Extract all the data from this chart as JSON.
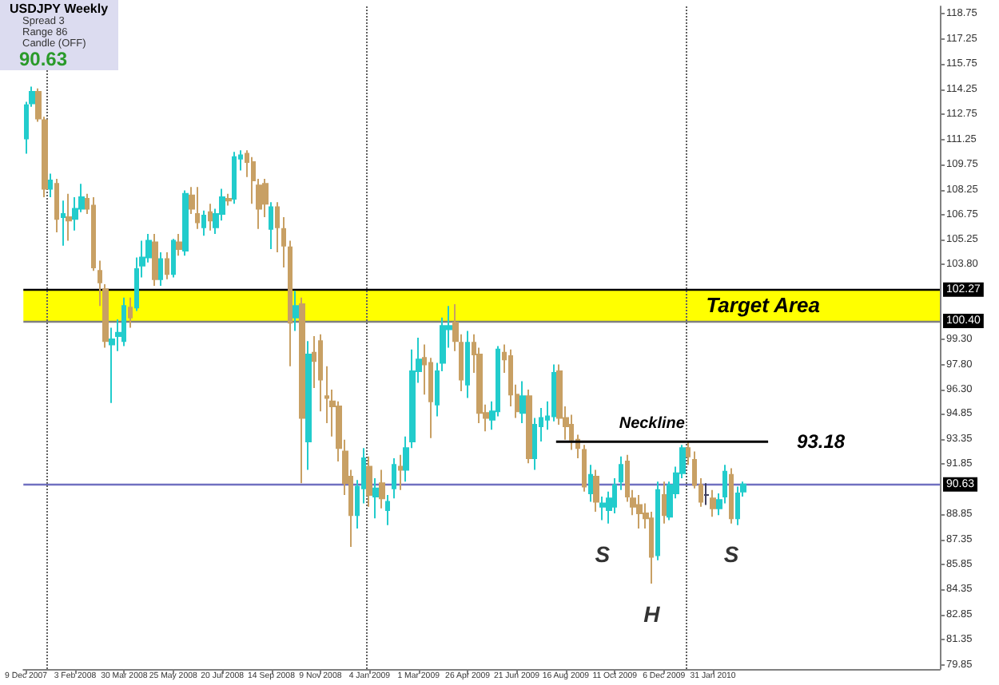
{
  "chart_data": {
    "type": "candlestick",
    "title": "USDJPY   Weekly",
    "annotations": [
      "Spread  3",
      "Range  86",
      "Candle  (OFF)",
      "90.63",
      {
        "text": "S",
        "x": "2009-09-27",
        "y": 88.3
      },
      {
        "text": "H",
        "x": "2009-11-22",
        "y": 84.7
      },
      {
        "text": "S",
        "x": "2010-02-21",
        "y": 88.3
      }
    ],
    "x": [
      "2007-12-09",
      "2007-12-16",
      "2007-12-23",
      "2007-12-30",
      "2008-01-06",
      "2008-01-13",
      "2008-01-20",
      "2008-01-27",
      "2008-02-03",
      "2008-02-10",
      "2008-02-17",
      "2008-02-24",
      "2008-03-02",
      "2008-03-09",
      "2008-03-16",
      "2008-03-23",
      "2008-03-30",
      "2008-04-06",
      "2008-04-13",
      "2008-04-20",
      "2008-04-27",
      "2008-05-04",
      "2008-05-11",
      "2008-05-18",
      "2008-05-25",
      "2008-06-01",
      "2008-06-08",
      "2008-06-15",
      "2008-06-22",
      "2008-06-29",
      "2008-07-06",
      "2008-07-13",
      "2008-07-20",
      "2008-07-27",
      "2008-08-03",
      "2008-08-10",
      "2008-08-17",
      "2008-08-24",
      "2008-08-31",
      "2008-09-07",
      "2008-09-14",
      "2008-09-21",
      "2008-09-28",
      "2008-10-05",
      "2008-10-12",
      "2008-10-19",
      "2008-10-26",
      "2008-11-02",
      "2008-11-09",
      "2008-11-16",
      "2008-11-23",
      "2008-11-30",
      "2008-12-07",
      "2008-12-14",
      "2008-12-21",
      "2008-12-28",
      "2009-01-04",
      "2009-01-11",
      "2009-01-18",
      "2009-01-25",
      "2009-02-01",
      "2009-02-08",
      "2009-02-15",
      "2009-02-22",
      "2009-03-01",
      "2009-03-08",
      "2009-03-15",
      "2009-03-22",
      "2009-03-29",
      "2009-04-05",
      "2009-04-12",
      "2009-04-19",
      "2009-04-26",
      "2009-05-03",
      "2009-05-10",
      "2009-05-17",
      "2009-05-24",
      "2009-05-31",
      "2009-06-07",
      "2009-06-14",
      "2009-06-21",
      "2009-06-28",
      "2009-07-05",
      "2009-07-12",
      "2009-07-19",
      "2009-07-26",
      "2009-08-02",
      "2009-08-09",
      "2009-08-16",
      "2009-08-23",
      "2009-08-30",
      "2009-09-06",
      "2009-09-13",
      "2009-09-20",
      "2009-09-27",
      "2009-10-04",
      "2009-10-11",
      "2009-10-18",
      "2009-10-25",
      "2009-11-01",
      "2009-11-08",
      "2009-11-15",
      "2009-11-22",
      "2009-11-29",
      "2009-12-06",
      "2009-12-13",
      "2009-12-20",
      "2009-12-27",
      "2010-01-03",
      "2010-01-10",
      "2010-01-17",
      "2010-01-24",
      "2010-01-31",
      "2010-02-07",
      "2010-02-14",
      "2010-02-21",
      "2010-02-28",
      "2010-03-07"
    ],
    "ohlc": [
      [
        111.3,
        113.5,
        110.4,
        113.3
      ],
      [
        113.4,
        114.4,
        113.2,
        114.1
      ],
      [
        114.1,
        114.3,
        112.3,
        112.5
      ],
      [
        112.4,
        112.6,
        107.8,
        108.3
      ],
      [
        108.3,
        109.2,
        107.8,
        108.8
      ],
      [
        108.6,
        108.9,
        105.7,
        106.5
      ],
      [
        106.6,
        107.6,
        104.9,
        106.8
      ],
      [
        106.6,
        108.0,
        105.2,
        106.4
      ],
      [
        106.5,
        107.8,
        105.8,
        107.1
      ],
      [
        107.1,
        108.6,
        106.9,
        107.8
      ],
      [
        107.7,
        108.0,
        106.8,
        107.1
      ],
      [
        107.3,
        107.8,
        103.4,
        103.6
      ],
      [
        103.4,
        104.0,
        101.3,
        102.7
      ],
      [
        102.3,
        102.6,
        98.8,
        99.2
      ],
      [
        99.0,
        100.0,
        95.5,
        99.3
      ],
      [
        99.5,
        100.5,
        98.6,
        99.7
      ],
      [
        99.2,
        101.8,
        98.9,
        101.3
      ],
      [
        101.2,
        101.8,
        100.0,
        100.6
      ],
      [
        101.2,
        104.2,
        101.0,
        103.5
      ],
      [
        103.7,
        105.2,
        103.0,
        104.2
      ],
      [
        104.2,
        105.6,
        103.9,
        105.2
      ],
      [
        105.1,
        105.6,
        102.5,
        102.9
      ],
      [
        102.9,
        104.5,
        102.5,
        104.1
      ],
      [
        104.1,
        104.5,
        102.9,
        103.2
      ],
      [
        103.2,
        105.3,
        103.0,
        105.2
      ],
      [
        105.1,
        105.6,
        104.3,
        104.7
      ],
      [
        104.6,
        108.2,
        104.3,
        108.0
      ],
      [
        107.9,
        108.4,
        106.8,
        107.1
      ],
      [
        106.8,
        108.4,
        105.9,
        106.3
      ],
      [
        106.0,
        107.0,
        105.5,
        106.7
      ],
      [
        106.9,
        107.4,
        105.8,
        106.4
      ],
      [
        106.0,
        107.1,
        105.6,
        106.8
      ],
      [
        106.8,
        108.3,
        106.4,
        107.8
      ],
      [
        107.7,
        108.0,
        107.3,
        107.6
      ],
      [
        107.7,
        110.5,
        107.4,
        110.2
      ],
      [
        110.1,
        110.6,
        109.4,
        110.3
      ],
      [
        110.4,
        110.6,
        109.0,
        109.9
      ],
      [
        109.9,
        110.2,
        107.4,
        108.8
      ],
      [
        108.5,
        108.9,
        105.9,
        107.1
      ],
      [
        108.6,
        108.9,
        106.6,
        107.4
      ],
      [
        105.9,
        107.5,
        104.7,
        107.2
      ],
      [
        107.2,
        107.5,
        104.5,
        106.0
      ],
      [
        105.9,
        106.6,
        103.6,
        104.9
      ],
      [
        104.8,
        105.2,
        97.7,
        100.3
      ],
      [
        100.6,
        102.2,
        99.8,
        101.3
      ],
      [
        101.4,
        101.8,
        90.7,
        94.6
      ],
      [
        93.2,
        99.2,
        91.5,
        98.4
      ],
      [
        98.5,
        99.5,
        96.4,
        98.0
      ],
      [
        99.2,
        99.6,
        95.0,
        96.9
      ],
      [
        95.9,
        97.7,
        94.3,
        95.8
      ],
      [
        95.6,
        96.3,
        93.5,
        95.3
      ],
      [
        95.3,
        95.6,
        92.0,
        92.8
      ],
      [
        92.6,
        93.3,
        90.0,
        90.7
      ],
      [
        91.1,
        91.5,
        86.9,
        88.8
      ],
      [
        88.8,
        90.9,
        88.0,
        90.5
      ],
      [
        90.4,
        92.8,
        89.5,
        92.2
      ],
      [
        91.7,
        92.3,
        89.3,
        90.0
      ],
      [
        89.9,
        91.0,
        88.6,
        90.4
      ],
      [
        90.7,
        91.5,
        89.2,
        89.8
      ],
      [
        89.1,
        90.0,
        88.2,
        89.6
      ],
      [
        90.4,
        92.2,
        89.8,
        91.8
      ],
      [
        91.7,
        92.4,
        90.3,
        91.5
      ],
      [
        91.5,
        93.5,
        90.8,
        92.8
      ],
      [
        93.2,
        98.7,
        92.8,
        97.4
      ],
      [
        97.4,
        99.4,
        96.7,
        98.1
      ],
      [
        98.2,
        99.0,
        96.0,
        97.8
      ],
      [
        97.9,
        98.2,
        93.4,
        95.6
      ],
      [
        95.4,
        97.9,
        94.7,
        97.4
      ],
      [
        97.9,
        100.6,
        97.4,
        100.1
      ],
      [
        99.9,
        101.3,
        98.8,
        100.1
      ],
      [
        100.3,
        101.4,
        98.6,
        99.2
      ],
      [
        99.1,
        99.6,
        96.2,
        96.9
      ],
      [
        96.6,
        99.8,
        95.8,
        99.1
      ],
      [
        99.1,
        99.6,
        97.3,
        98.4
      ],
      [
        98.4,
        98.8,
        94.3,
        94.9
      ],
      [
        94.9,
        95.4,
        93.8,
        94.6
      ],
      [
        94.5,
        95.6,
        93.9,
        95.0
      ],
      [
        95.0,
        98.9,
        94.7,
        98.7
      ],
      [
        98.5,
        99.0,
        97.3,
        98.1
      ],
      [
        98.3,
        98.7,
        95.3,
        96.0
      ],
      [
        96.0,
        96.6,
        94.6,
        95.0
      ],
      [
        94.9,
        96.8,
        94.3,
        95.9
      ],
      [
        95.9,
        96.3,
        91.9,
        92.2
      ],
      [
        92.2,
        94.6,
        91.5,
        94.2
      ],
      [
        94.1,
        95.2,
        93.2,
        94.6
      ],
      [
        94.5,
        95.6,
        93.9,
        94.7
      ],
      [
        94.7,
        97.8,
        94.4,
        97.3
      ],
      [
        97.4,
        97.8,
        94.2,
        94.6
      ],
      [
        94.6,
        95.3,
        93.3,
        94.1
      ],
      [
        94.2,
        94.8,
        92.7,
        93.3
      ],
      [
        93.3,
        93.6,
        92.2,
        92.8
      ],
      [
        92.7,
        93.0,
        90.2,
        90.5
      ],
      [
        90.1,
        91.8,
        89.6,
        91.2
      ],
      [
        91.1,
        91.5,
        89.0,
        89.6
      ],
      [
        89.3,
        89.9,
        88.5,
        89.5
      ],
      [
        89.1,
        90.2,
        88.3,
        89.8
      ],
      [
        89.3,
        91.0,
        88.9,
        90.6
      ],
      [
        90.8,
        92.3,
        90.3,
        91.8
      ],
      [
        92.0,
        92.4,
        89.6,
        89.9
      ],
      [
        89.8,
        90.3,
        88.8,
        89.3
      ],
      [
        89.4,
        90.0,
        88.0,
        88.9
      ],
      [
        88.9,
        89.5,
        88.0,
        88.6
      ],
      [
        88.6,
        89.0,
        84.7,
        86.3
      ],
      [
        86.4,
        90.8,
        86.1,
        90.3
      ],
      [
        90.0,
        90.8,
        88.3,
        88.8
      ],
      [
        88.7,
        90.8,
        88.5,
        90.6
      ],
      [
        90.1,
        91.7,
        89.8,
        91.3
      ],
      [
        91.3,
        93.0,
        91.0,
        92.8
      ],
      [
        92.8,
        93.2,
        91.8,
        92.3
      ],
      [
        92.1,
        92.6,
        90.4,
        90.6
      ],
      [
        90.6,
        91.0,
        89.3,
        89.6
      ],
      [
        90.0,
        90.7,
        89.4,
        90.0
      ],
      [
        89.8,
        90.3,
        88.7,
        89.2
      ],
      [
        89.2,
        90.1,
        88.8,
        89.7
      ],
      [
        89.9,
        91.8,
        89.5,
        91.4
      ],
      [
        91.2,
        91.6,
        88.3,
        88.6
      ],
      [
        88.6,
        90.5,
        88.2,
        90.1
      ],
      [
        90.2,
        90.8,
        89.9,
        90.63
      ]
    ],
    "colors": [
      "#22cccc",
      "#22cccc",
      "#c8a064",
      "#c8a064",
      "#22cccc",
      "#c8a064",
      "#22cccc",
      "#c8a064",
      "#22cccc",
      "#22cccc",
      "#c8a064",
      "#c8a064",
      "#c8a064",
      "#c8a064",
      "#22cccc",
      "#22cccc",
      "#22cccc",
      "#c8a064",
      "#22cccc",
      "#22cccc",
      "#22cccc",
      "#c8a064",
      "#22cccc",
      "#c8a064",
      "#22cccc",
      "#c8a064",
      "#22cccc",
      "#c8a064",
      "#c8a064",
      "#22cccc",
      "#c8a064",
      "#22cccc",
      "#22cccc",
      "#c8a064",
      "#22cccc",
      "#22cccc",
      "#c8a064",
      "#c8a064",
      "#c8a064",
      "#c8a064",
      "#22cccc",
      "#c8a064",
      "#c8a064",
      "#c8a064",
      "#22cccc",
      "#c8a064",
      "#22cccc",
      "#c8a064",
      "#c8a064",
      "#c8a064",
      "#c8a064",
      "#c8a064",
      "#c8a064",
      "#c8a064",
      "#22cccc",
      "#22cccc",
      "#c8a064",
      "#22cccc",
      "#c8a064",
      "#22cccc",
      "#22cccc",
      "#c8a064",
      "#22cccc",
      "#22cccc",
      "#22cccc",
      "#c8a064",
      "#c8a064",
      "#22cccc",
      "#22cccc",
      "#22cccc",
      "#c8a064",
      "#c8a064",
      "#22cccc",
      "#c8a064",
      "#c8a064",
      "#c8a064",
      "#22cccc",
      "#22cccc",
      "#c8a064",
      "#c8a064",
      "#c8a064",
      "#22cccc",
      "#c8a064",
      "#22cccc",
      "#22cccc",
      "#22cccc",
      "#22cccc",
      "#c8a064",
      "#c8a064",
      "#c8a064",
      "#c8a064",
      "#c8a064",
      "#22cccc",
      "#c8a064",
      "#22cccc",
      "#22cccc",
      "#22cccc",
      "#22cccc",
      "#c8a064",
      "#c8a064",
      "#c8a064",
      "#c8a064",
      "#c8a064",
      "#22cccc",
      "#c8a064",
      "#22cccc",
      "#22cccc",
      "#22cccc",
      "#c8a064",
      "#c8a064",
      "#c8a064",
      "#404060",
      "#c8a064",
      "#22cccc",
      "#22cccc",
      "#c8a064",
      "#22cccc",
      "#22cccc"
    ],
    "series": [
      {
        "type": "line",
        "name": "Neckline",
        "x": [
          "2009-08-05",
          "2010-04-04"
        ],
        "values": [
          93.18,
          93.18
        ],
        "color": "#000000",
        "value_labels": [
          null,
          "93.18"
        ]
      }
    ],
    "xlim": [
      "2007-12-06",
      "2010-10-17"
    ],
    "xticks": [
      {
        "value": "2007-12-09",
        "label": "9 Dec 2007"
      },
      {
        "value": "2008-02-03",
        "label": "3 Feb 2008"
      },
      {
        "value": "2008-03-30",
        "label": "30 Mar 2008"
      },
      {
        "value": "2008-05-25",
        "label": "25 May 2008"
      },
      {
        "value": "2008-07-20",
        "label": "20 Jul 2008"
      },
      {
        "value": "2008-09-14",
        "label": "14 Sep 2008"
      },
      {
        "value": "2008-11-09",
        "label": "9 Nov 2008"
      },
      {
        "value": "2009-01-04",
        "label": "4 Jan 2009"
      },
      {
        "value": "2009-03-01",
        "label": "1 Mar 2009"
      },
      {
        "value": "2009-04-26",
        "label": "26 Apr 2009"
      },
      {
        "value": "2009-06-21",
        "label": "21 Jun 2009"
      },
      {
        "value": "2009-08-16",
        "label": "16 Aug 2009"
      },
      {
        "value": "2009-10-11",
        "label": "11 Oct 2009"
      },
      {
        "value": "2009-12-06",
        "label": "6 Dec 2009"
      },
      {
        "value": "2010-01-31",
        "label": "31 Jan 2010"
      }
    ],
    "ylim": [
      79.6,
      119.2
    ],
    "yticks": [
      118.75,
      117.25,
      115.75,
      114.25,
      112.75,
      111.25,
      109.75,
      108.25,
      106.75,
      105.25,
      {
        "value": 103.8,
        "label": "103.80"
      },
      {
        "value": 99.3,
        "label": "99.30"
      },
      {
        "value": 97.8,
        "label": "97.80"
      },
      {
        "value": 96.3,
        "label": "96.30"
      },
      94.85,
      93.35,
      91.85,
      88.85,
      87.35,
      85.85,
      84.35,
      82.85,
      81.35,
      79.85
    ],
    "ref_lines": [
      {
        "axis": "y",
        "value": 102.27,
        "label": "102.27",
        "color": "#000000"
      },
      {
        "axis": "y",
        "value": 100.4,
        "label": "100.40",
        "color": "#808080"
      },
      {
        "axis": "y",
        "value": 90.63,
        "label": "90.63",
        "color": "#7070c0"
      },
      {
        "axis": "x",
        "value": "2008-01-01",
        "color": "#606060",
        "line_style": "dotted"
      },
      {
        "axis": "x",
        "value": "2009-01-01",
        "color": "#606060",
        "line_style": "dotted"
      },
      {
        "axis": "x",
        "value": "2010-01-01",
        "color": "#606060",
        "line_style": "dotted"
      }
    ],
    "bands": [
      {
        "axis": "y",
        "from": 100.4,
        "to": 102.27,
        "label": "Target Area",
        "color": "#ffff00"
      }
    ],
    "tick_labels": true
  }
}
